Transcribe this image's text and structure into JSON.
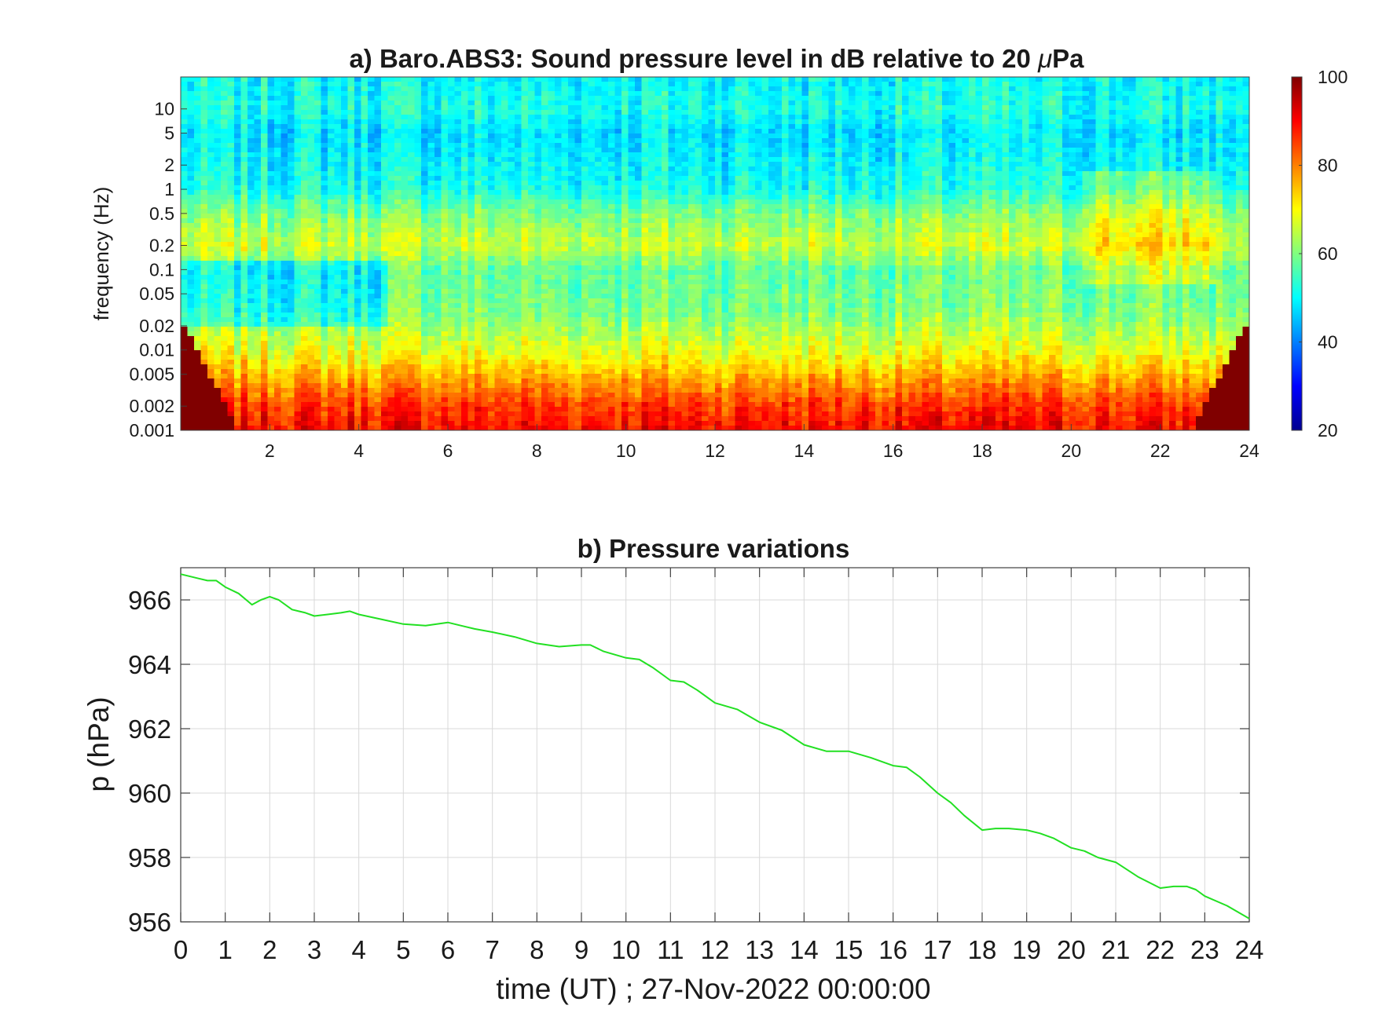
{
  "chart_data": [
    {
      "type": "heatmap",
      "title_prefix": "a) Baro.ABS3: Sound pressure level in dB relative to 20 ",
      "title_mu": "μ",
      "title_suffix": "Pa",
      "xlabel": "",
      "ylabel": "frequency (Hz)",
      "xlim": [
        0,
        24
      ],
      "x_ticks": [
        2,
        4,
        6,
        8,
        10,
        12,
        14,
        16,
        18,
        20,
        22,
        24
      ],
      "x_tick_labels": [
        "2",
        "4",
        "6",
        "8",
        "10",
        "12",
        "14",
        "16",
        "18",
        "20",
        "22",
        "24"
      ],
      "y_scale": "log",
      "ylim": [
        0.001,
        25
      ],
      "y_ticks": [
        0.001,
        0.002,
        0.005,
        0.01,
        0.02,
        0.05,
        0.1,
        0.2,
        0.5,
        1,
        2,
        5,
        10
      ],
      "y_tick_labels": [
        "0.001",
        "0.002",
        "0.005",
        "0.01",
        "0.02",
        "0.05",
        "0.1",
        "0.2",
        "0.5",
        "1",
        "2",
        "5",
        "10"
      ],
      "colormap": "jet",
      "colorbar": {
        "min": 20,
        "max": 100,
        "ticks": [
          20,
          40,
          60,
          80,
          100
        ],
        "tick_labels": [
          "20",
          "40",
          "60",
          "80",
          "100"
        ]
      },
      "level_profile_db": [
        {
          "f": 0.001,
          "db": 90
        },
        {
          "f": 0.002,
          "db": 86
        },
        {
          "f": 0.004,
          "db": 78
        },
        {
          "f": 0.01,
          "db": 68
        },
        {
          "f": 0.03,
          "db": 60
        },
        {
          "f": 0.1,
          "db": 58
        },
        {
          "f": 0.2,
          "db": 66
        },
        {
          "f": 0.5,
          "db": 60
        },
        {
          "f": 1,
          "db": 52
        },
        {
          "f": 5,
          "db": 48
        },
        {
          "f": 10,
          "db": 52
        },
        {
          "f": 25,
          "db": 50
        }
      ]
    },
    {
      "type": "line",
      "title": "b) Pressure variations",
      "xlabel": "time (UT) ; 27-Nov-2022 00:00:00",
      "ylabel": "p (hPa)",
      "xlim": [
        0,
        24
      ],
      "ylim": [
        956,
        967
      ],
      "x_ticks": [
        0,
        1,
        2,
        3,
        4,
        5,
        6,
        7,
        8,
        9,
        10,
        11,
        12,
        13,
        14,
        15,
        16,
        17,
        18,
        19,
        20,
        21,
        22,
        23,
        24
      ],
      "x_tick_labels": [
        "0",
        "1",
        "2",
        "3",
        "4",
        "5",
        "6",
        "7",
        "8",
        "9",
        "10",
        "11",
        "12",
        "13",
        "14",
        "15",
        "16",
        "17",
        "18",
        "19",
        "20",
        "21",
        "22",
        "23",
        "24"
      ],
      "y_ticks": [
        956,
        958,
        960,
        962,
        964,
        966
      ],
      "y_tick_labels": [
        "956",
        "958",
        "960",
        "962",
        "964",
        "966"
      ],
      "grid": true,
      "line_color": "#22e022",
      "series": [
        {
          "x": [
            0,
            0.3,
            0.6,
            0.8,
            1,
            1.3,
            1.6,
            1.8,
            2,
            2.2,
            2.5,
            2.8,
            3,
            3.3,
            3.6,
            3.8,
            4,
            4.5,
            5,
            5.5,
            6,
            6.3,
            6.6,
            7,
            7.5,
            8,
            8.5,
            9,
            9.2,
            9.5,
            10,
            10.3,
            10.6,
            11,
            11.3,
            11.6,
            12,
            12.5,
            13,
            13.5,
            14,
            14.5,
            15,
            15.5,
            16,
            16.3,
            16.6,
            17,
            17.3,
            17.6,
            18,
            18.3,
            18.6,
            19,
            19.3,
            19.6,
            20,
            20.3,
            20.6,
            21,
            21.5,
            22,
            22.3,
            22.6,
            22.8,
            23,
            23.5,
            24
          ],
          "y": [
            966.8,
            966.7,
            966.6,
            966.6,
            966.4,
            966.2,
            965.85,
            966.0,
            966.1,
            966.0,
            965.7,
            965.6,
            965.5,
            965.55,
            965.6,
            965.65,
            965.55,
            965.4,
            965.25,
            965.2,
            965.3,
            965.2,
            965.1,
            965.0,
            964.85,
            964.65,
            964.55,
            964.6,
            964.6,
            964.4,
            964.2,
            964.15,
            963.9,
            963.5,
            963.45,
            963.2,
            962.8,
            962.6,
            962.2,
            961.95,
            961.5,
            961.3,
            961.3,
            961.1,
            960.85,
            960.8,
            960.5,
            960.0,
            959.7,
            959.3,
            958.85,
            958.9,
            958.9,
            958.85,
            958.75,
            958.6,
            958.3,
            958.2,
            958.0,
            957.85,
            957.4,
            957.05,
            957.1,
            957.1,
            957.0,
            956.8,
            956.5,
            956.1
          ]
        }
      ]
    }
  ]
}
